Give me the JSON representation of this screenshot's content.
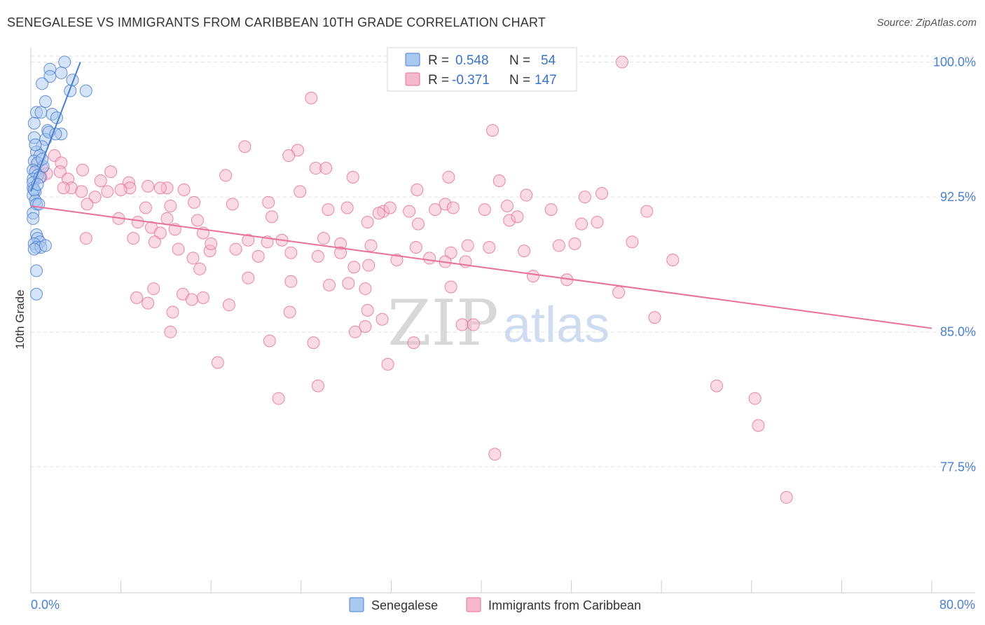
{
  "title": "SENEGALESE VS IMMIGRANTS FROM CARIBBEAN 10TH GRADE CORRELATION CHART",
  "source": "Source: ZipAtlas.com",
  "watermark": {
    "zip": "ZIP",
    "atlas": "atlas"
  },
  "colors": {
    "blue": "#4a7fd0",
    "blue_fill": "#a9c8f0",
    "pink": "#e8709a",
    "pink_fill": "#f5b8cc",
    "grid": "#e2e2e2"
  },
  "legend_box": {
    "rows": [
      {
        "r_label": "R =",
        "r_value": "0.548",
        "n_label": "N =",
        "n_value": "54"
      },
      {
        "r_label": "R =",
        "r_value": "-0.371",
        "n_label": "N =",
        "n_value": "147"
      }
    ]
  },
  "chart_data": {
    "type": "scatter",
    "title": "SENEGALESE VS IMMIGRANTS FROM CARIBBEAN 10TH GRADE CORRELATION CHART",
    "xlabel": "",
    "ylabel": "10th Grade",
    "xlim": [
      0,
      80
    ],
    "ylim": [
      70.5,
      100.8
    ],
    "x_tick_labels": [
      "0.0%",
      "80.0%"
    ],
    "y_ticks": [
      77.5,
      85.0,
      92.5,
      100.0
    ],
    "y_tick_labels": [
      "77.5%",
      "85.0%",
      "92.5%",
      "100.0%"
    ],
    "grid": true,
    "legend_position": "bottom",
    "series": [
      {
        "name": "Senegalese",
        "color": "#4a7fd0",
        "trend": {
          "x0": 0.0,
          "y0": 92.8,
          "x1": 4.4,
          "y1": 100.0
        },
        "points": [
          [
            3.0,
            100.0
          ],
          [
            1.7,
            99.6
          ],
          [
            2.7,
            99.4
          ],
          [
            1.7,
            99.2
          ],
          [
            3.7,
            99.0
          ],
          [
            1.0,
            98.8
          ],
          [
            3.5,
            98.4
          ],
          [
            4.9,
            98.4
          ],
          [
            1.3,
            97.8
          ],
          [
            0.5,
            97.2
          ],
          [
            0.9,
            97.2
          ],
          [
            1.9,
            97.1
          ],
          [
            2.3,
            96.9
          ],
          [
            0.3,
            96.6
          ],
          [
            1.5,
            96.2
          ],
          [
            2.7,
            96.0
          ],
          [
            0.3,
            95.8
          ],
          [
            1.3,
            95.7
          ],
          [
            1.0,
            95.3
          ],
          [
            0.5,
            95.0
          ],
          [
            0.8,
            94.8
          ],
          [
            0.3,
            94.5
          ],
          [
            0.6,
            94.4
          ],
          [
            1.1,
            94.2
          ],
          [
            0.2,
            94.0
          ],
          [
            0.4,
            93.9
          ],
          [
            0.6,
            93.7
          ],
          [
            0.2,
            93.5
          ],
          [
            0.2,
            93.0
          ],
          [
            0.4,
            92.8
          ],
          [
            0.2,
            92.6
          ],
          [
            0.4,
            92.3
          ],
          [
            0.5,
            92.1
          ],
          [
            0.2,
            91.6
          ],
          [
            0.2,
            91.3
          ],
          [
            0.5,
            90.4
          ],
          [
            0.6,
            90.2
          ],
          [
            0.8,
            90.0
          ],
          [
            0.3,
            89.9
          ],
          [
            0.5,
            89.7
          ],
          [
            0.9,
            89.7
          ],
          [
            1.3,
            89.8
          ],
          [
            0.5,
            88.4
          ],
          [
            0.5,
            87.1
          ],
          [
            0.2,
            93.3
          ],
          [
            0.8,
            93.6
          ],
          [
            0.3,
            92.9
          ],
          [
            1.0,
            94.6
          ],
          [
            0.4,
            95.4
          ],
          [
            0.6,
            93.2
          ],
          [
            0.3,
            89.6
          ],
          [
            0.7,
            92.1
          ],
          [
            1.6,
            96.1
          ],
          [
            2.2,
            96.0
          ]
        ]
      },
      {
        "name": "Immigrants from Caribbean",
        "color": "#e8709a",
        "trend": {
          "x0": 0.0,
          "y0": 92.0,
          "x1": 80.0,
          "y1": 85.2
        },
        "points": [
          [
            52.5,
            100.0
          ],
          [
            24.9,
            98.0
          ],
          [
            41.0,
            96.2
          ],
          [
            19.0,
            95.3
          ],
          [
            23.7,
            95.1
          ],
          [
            22.9,
            94.8
          ],
          [
            2.1,
            94.8
          ],
          [
            2.7,
            94.4
          ],
          [
            0.5,
            94.3
          ],
          [
            1.0,
            94.1
          ],
          [
            4.6,
            94.0
          ],
          [
            7.1,
            93.9
          ],
          [
            1.4,
            93.8
          ],
          [
            0.9,
            93.6
          ],
          [
            2.6,
            93.9
          ],
          [
            3.3,
            93.5
          ],
          [
            17.3,
            93.7
          ],
          [
            25.3,
            94.1
          ],
          [
            26.2,
            94.1
          ],
          [
            28.6,
            93.6
          ],
          [
            37.1,
            93.6
          ],
          [
            41.6,
            93.4
          ],
          [
            6.2,
            93.4
          ],
          [
            8.7,
            93.3
          ],
          [
            8.8,
            93.0
          ],
          [
            10.4,
            93.1
          ],
          [
            12.1,
            93.0
          ],
          [
            13.6,
            92.9
          ],
          [
            3.6,
            93.0
          ],
          [
            4.5,
            92.8
          ],
          [
            2.9,
            93.0
          ],
          [
            5.7,
            92.5
          ],
          [
            6.8,
            92.8
          ],
          [
            8.0,
            92.9
          ],
          [
            23.9,
            92.8
          ],
          [
            34.3,
            92.9
          ],
          [
            44.0,
            92.6
          ],
          [
            49.2,
            92.5
          ],
          [
            50.7,
            92.7
          ],
          [
            14.5,
            92.2
          ],
          [
            17.9,
            92.1
          ],
          [
            21.1,
            92.2
          ],
          [
            36.8,
            92.1
          ],
          [
            26.4,
            91.8
          ],
          [
            28.1,
            91.9
          ],
          [
            31.3,
            91.7
          ],
          [
            31.9,
            91.9
          ],
          [
            30.9,
            91.6
          ],
          [
            33.6,
            91.7
          ],
          [
            35.9,
            91.8
          ],
          [
            37.5,
            91.9
          ],
          [
            40.3,
            91.8
          ],
          [
            42.3,
            92.0
          ],
          [
            46.2,
            91.8
          ],
          [
            54.7,
            91.7
          ],
          [
            10.2,
            91.9
          ],
          [
            12.4,
            92.0
          ],
          [
            5.0,
            92.1
          ],
          [
            12.1,
            91.3
          ],
          [
            14.8,
            91.2
          ],
          [
            21.4,
            91.4
          ],
          [
            29.9,
            91.1
          ],
          [
            34.4,
            91.0
          ],
          [
            42.5,
            91.2
          ],
          [
            43.2,
            91.4
          ],
          [
            48.9,
            91.0
          ],
          [
            50.3,
            91.1
          ],
          [
            7.8,
            91.3
          ],
          [
            9.5,
            91.1
          ],
          [
            10.7,
            90.8
          ],
          [
            11.5,
            90.5
          ],
          [
            12.8,
            90.7
          ],
          [
            15.3,
            90.5
          ],
          [
            19.3,
            90.1
          ],
          [
            21.0,
            90.0
          ],
          [
            22.3,
            90.1
          ],
          [
            26.0,
            90.2
          ],
          [
            27.5,
            89.9
          ],
          [
            30.2,
            89.8
          ],
          [
            34.2,
            89.7
          ],
          [
            37.3,
            89.4
          ],
          [
            38.8,
            89.8
          ],
          [
            40.7,
            89.7
          ],
          [
            43.8,
            89.5
          ],
          [
            46.9,
            89.8
          ],
          [
            48.3,
            89.9
          ],
          [
            53.4,
            90.0
          ],
          [
            9.1,
            90.2
          ],
          [
            11.0,
            90.0
          ],
          [
            13.1,
            89.6
          ],
          [
            14.4,
            89.1
          ],
          [
            15.9,
            89.5
          ],
          [
            16.0,
            89.9
          ],
          [
            18.2,
            89.6
          ],
          [
            20.2,
            89.2
          ],
          [
            23.1,
            89.4
          ],
          [
            25.5,
            89.2
          ],
          [
            27.5,
            89.4
          ],
          [
            28.7,
            88.6
          ],
          [
            30.0,
            88.7
          ],
          [
            32.5,
            89.0
          ],
          [
            35.4,
            89.1
          ],
          [
            36.8,
            88.9
          ],
          [
            38.6,
            88.9
          ],
          [
            57.0,
            89.0
          ],
          [
            4.9,
            90.2
          ],
          [
            15.0,
            88.5
          ],
          [
            19.3,
            88.0
          ],
          [
            23.1,
            87.8
          ],
          [
            26.5,
            87.6
          ],
          [
            28.2,
            87.7
          ],
          [
            29.7,
            87.4
          ],
          [
            37.3,
            87.5
          ],
          [
            44.6,
            88.1
          ],
          [
            47.6,
            87.9
          ],
          [
            52.2,
            87.2
          ],
          [
            10.9,
            87.4
          ],
          [
            13.5,
            87.1
          ],
          [
            9.4,
            86.9
          ],
          [
            10.4,
            86.6
          ],
          [
            14.3,
            86.8
          ],
          [
            15.3,
            86.9
          ],
          [
            17.6,
            86.5
          ],
          [
            23.0,
            86.1
          ],
          [
            29.9,
            86.2
          ],
          [
            31.2,
            85.7
          ],
          [
            38.3,
            85.4
          ],
          [
            39.3,
            85.4
          ],
          [
            55.4,
            85.8
          ],
          [
            12.6,
            86.1
          ],
          [
            12.4,
            85.0
          ],
          [
            28.8,
            85.0
          ],
          [
            29.7,
            85.3
          ],
          [
            21.2,
            84.5
          ],
          [
            25.1,
            84.4
          ],
          [
            34.0,
            84.4
          ],
          [
            16.6,
            83.3
          ],
          [
            31.7,
            83.2
          ],
          [
            25.5,
            82.0
          ],
          [
            22.0,
            81.3
          ],
          [
            60.9,
            82.0
          ],
          [
            64.3,
            81.3
          ],
          [
            64.6,
            79.8
          ],
          [
            41.2,
            78.2
          ],
          [
            67.1,
            75.8
          ],
          [
            11.5,
            93.0
          ]
        ]
      }
    ]
  }
}
